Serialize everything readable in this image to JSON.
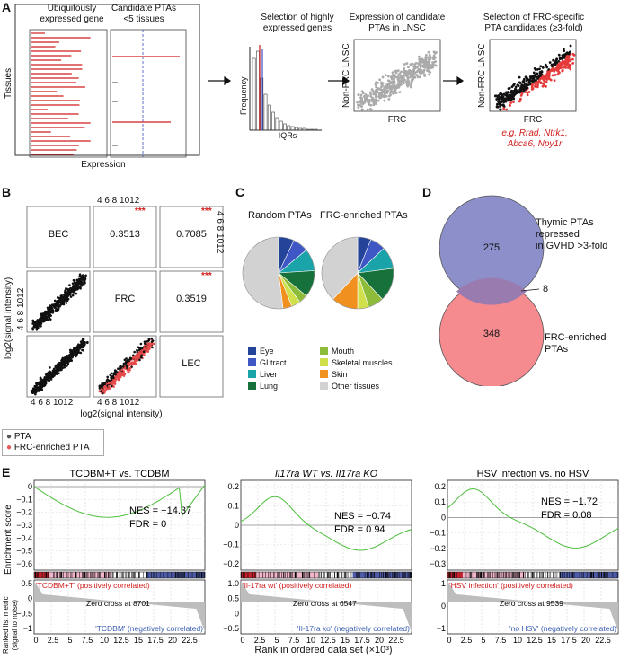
{
  "panels": {
    "A": "A",
    "B": "B",
    "C": "C",
    "D": "D",
    "E": "E"
  },
  "panelA": {
    "ubiq_title": "Ubiquitously\nexpressed gene",
    "cand_title": "Candidate PTAs\n<5 tissues",
    "tissues_label": "Tissues",
    "expression_label": "Expression",
    "sel_title": "Selection of highly\nexpressed genes",
    "frequency_label": "Frequency",
    "iqrs_label": "IQRs",
    "expr_title": "Expression of candidate\nPTAs in LNSC",
    "nonfrc_label": "Non-FRC LNSC",
    "frc_label": "FRC",
    "sel2_title": "Selection of FRC-specific\nPTA candidates (≥3-fold)",
    "eg_label": "e.g. Rrad, Ntrk1,\nAbca6, Npy1r"
  },
  "panelB": {
    "top_ticks": "4  6  8 1012",
    "right_ticks": "4  6  8 1012",
    "bottom_ticks1": "4   6  8 1012",
    "bottom_ticks2": "4  6  8 1012",
    "left_ticks": "4  6  8 1012",
    "bec": "BEC",
    "frc": "FRC",
    "lec": "LEC",
    "r1": "0.3513",
    "r2": "0.7085",
    "r3": "0.3519",
    "stars": "***",
    "ylabel": "log2(signal intensity)",
    "xlabel": "log2(signal intensity)",
    "legend_pta": "PTA",
    "legend_frc": "FRC-enriched PTA"
  },
  "panelC": {
    "random_title": "Random PTAs",
    "frc_title": "FRC-enriched PTAs",
    "legend": [
      {
        "label": "Eye",
        "color": "#24449a"
      },
      {
        "label": "GI tract",
        "color": "#3f57c4"
      },
      {
        "label": "Liver",
        "color": "#1aa3a8"
      },
      {
        "label": "Lung",
        "color": "#16713a"
      },
      {
        "label": "Mouth",
        "color": "#8dbb3a"
      },
      {
        "label": "Skeletal muscles",
        "color": "#cfe04a"
      },
      {
        "label": "Skin",
        "color": "#f0901f"
      },
      {
        "label": "Other tissues",
        "color": "#d2d2d2"
      }
    ],
    "random_pie": [
      0.07,
      0.07,
      0.1,
      0.12,
      0.04,
      0.04,
      0.04,
      0.52
    ],
    "frc_pie": [
      0.06,
      0.07,
      0.1,
      0.15,
      0.07,
      0.05,
      0.12,
      0.38
    ]
  },
  "panelD": {
    "thymic_label": "Thymic PTAs repressed\nin GVHD >3-fold",
    "frc_label": "FRC-enriched\nPTAs",
    "n_top": "275",
    "n_overlap": "8",
    "n_bottom": "348"
  },
  "panelE": {
    "y_es": "Enrichment score",
    "y_rank": "Ranked list metric\n(signal to noise)",
    "xlabel": "Rank in ordered data set (×10³)",
    "xticks": [
      "0",
      "2.5",
      "5",
      "7.5",
      "10",
      "12.5",
      "15",
      "17.5",
      "20",
      "22.5"
    ],
    "plots": [
      {
        "title": "TCDBM+T vs. TCDBM",
        "nes": "NES = −14.37",
        "fdr": "FDR = 0",
        "pos": "'TCDBM+T' (positively correlated)",
        "neg": "'TCDBM' (negatively correlated)",
        "zero": "Zero cross at 8701",
        "yticks": [
          "0",
          "−0.1",
          "−0.2",
          "−0.3",
          "−0.4",
          "−0.5",
          "−0.6"
        ],
        "rticks": [
          "0.5",
          "0",
          "−0.5",
          "−1"
        ]
      },
      {
        "title": "Il17ra WT vs. Il17ra KO",
        "nes": "NES = −0.74",
        "fdr": "FDR = 0.94",
        "pos": "'Il-17ra wt' (positively correlated)",
        "neg": "'Il-17ra ko' (negatively correlated)",
        "zero": "Zero cross at 6547",
        "yticks": [
          "0.2",
          "0.1",
          "0",
          "−0.1",
          "−0.2"
        ],
        "rticks": [
          "1.0",
          "0.5",
          "0",
          "−0.5"
        ]
      },
      {
        "title": "HSV infection vs. no HSV",
        "nes": "NES = −1.72",
        "fdr": "FDR = 0.08",
        "pos": "'HSV infection' (positively correlated)",
        "neg": "'no HSV' (negatively correlated)",
        "zero": "Zero cross at 9539",
        "yticks": [
          "0.2",
          "0.1",
          "0",
          "−0.1",
          "−0.2",
          "−0.3"
        ],
        "rticks": [
          "1",
          "0",
          "−1"
        ]
      }
    ]
  }
}
